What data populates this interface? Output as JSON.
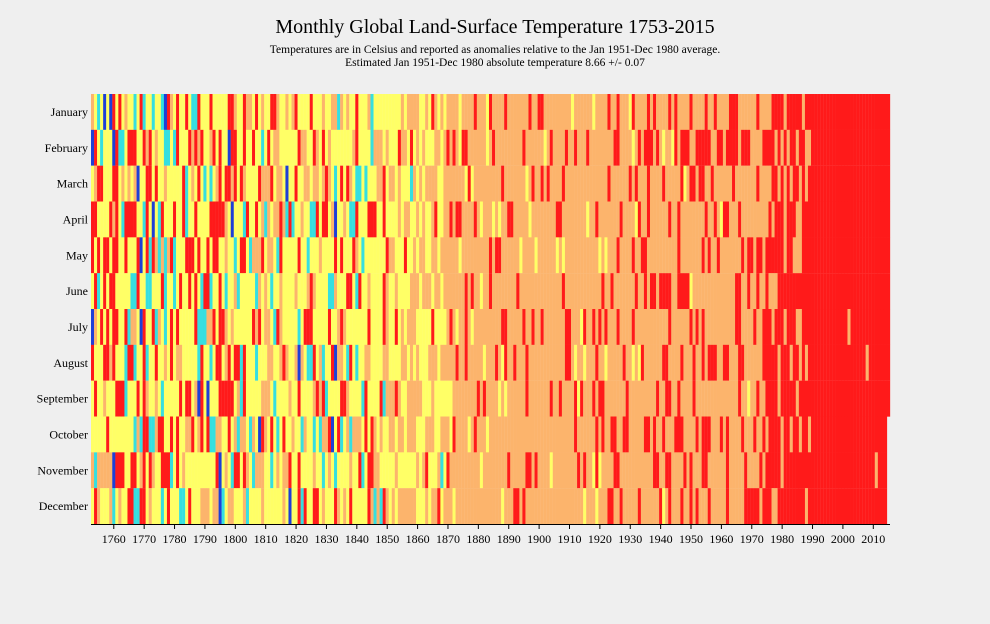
{
  "chart_data": {
    "type": "heatmap",
    "title": "Monthly Global Land-Surface Temperature 1753-2015",
    "subtitle": [
      "Temperatures are in Celsius and reported as anomalies relative to the Jan 1951-Dec 1980 average.",
      "Estimated Jan 1951-Dec 1980 absolute temperature 8.66 +/- 0.07"
    ],
    "x_range": [
      1753,
      2015
    ],
    "x_ticks": [
      "1760",
      "1770",
      "1780",
      "1790",
      "1800",
      "1810",
      "1820",
      "1830",
      "1840",
      "1850",
      "1860",
      "1870",
      "1880",
      "1890",
      "1900",
      "1910",
      "1920",
      "1930",
      "1940",
      "1950",
      "1960",
      "1970",
      "1980",
      "1990",
      "2000",
      "2010"
    ],
    "y_categories": [
      "January",
      "February",
      "March",
      "April",
      "May",
      "June",
      "July",
      "August",
      "September",
      "October",
      "November",
      "December"
    ],
    "color_scale": [
      "#1e3fd6",
      "#35dfe0",
      "#ffff66",
      "#fcb46c",
      "#ff1a1a"
    ],
    "last_year_months": 9,
    "eras": [
      {
        "from": 1753,
        "to": 1800,
        "pattern": "mixed: yellow, cyan, blue, red, orange"
      },
      {
        "from": 1800,
        "to": 1850,
        "pattern": "mixed: yellow dominant, cyan, red"
      },
      {
        "from": 1850,
        "to": 1870,
        "pattern": "yellow and orange"
      },
      {
        "from": 1870,
        "to": 1925,
        "pattern": "orange dominant, scattered red"
      },
      {
        "from": 1925,
        "to": 1975,
        "pattern": "orange and red"
      },
      {
        "from": 1975,
        "to": 1990,
        "pattern": "red dominant"
      },
      {
        "from": 1990,
        "to": 2015,
        "pattern": "red"
      }
    ]
  }
}
